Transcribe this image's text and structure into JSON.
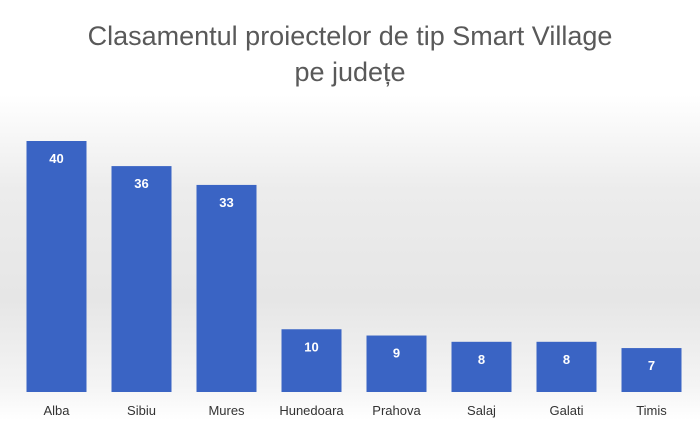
{
  "chart_data": {
    "type": "bar",
    "title_lines": [
      "Clasamentul proiectelor de tip Smart Village",
      "pe județe"
    ],
    "categories": [
      "Alba",
      "Sibiu",
      "Mures",
      "Hunedoara",
      "Prahova",
      "Salaj",
      "Galati",
      "Timis"
    ],
    "values": [
      40,
      36,
      33,
      10,
      9,
      8,
      8,
      7
    ],
    "ylim": [
      0,
      40
    ],
    "bar_color": "#3a64c4",
    "label_color": "#ffffff",
    "axis_label_color": "#333333",
    "grid": false,
    "legend": "none",
    "data_labels": true
  }
}
